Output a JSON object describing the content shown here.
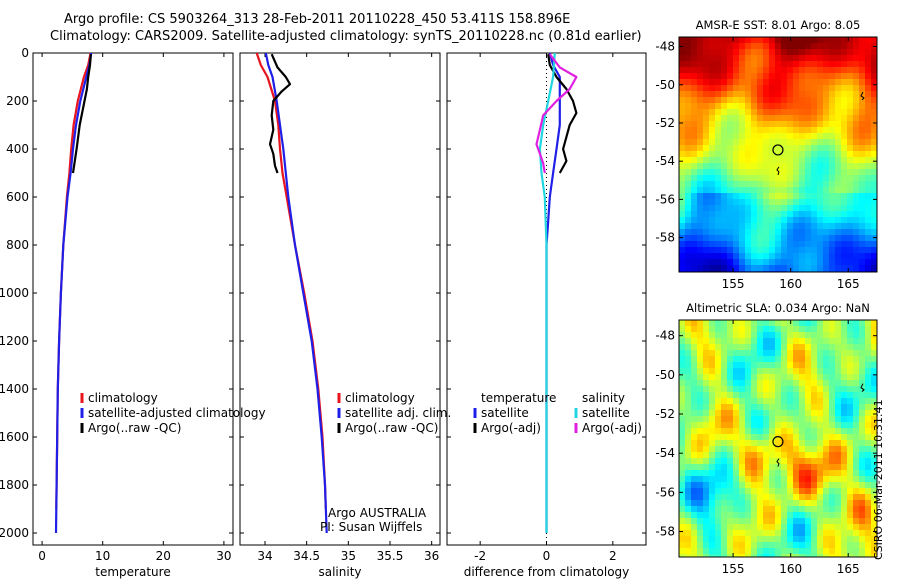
{
  "header": {
    "line1": "Argo profile: CS 5903264_313 28-Feb-2011 20110228_450 53.411S 158.896E",
    "line2": "Climatology: CARS2009. Satellite-adjusted climatology: synTS_20110228.nc (0.81d earlier)"
  },
  "colors": {
    "climatology": "#e8141e",
    "satellite": "#1f1fe8",
    "argo": "#000000",
    "salinity_satellite": "#22d6e0",
    "salinity_argo": "#e020e0"
  },
  "chart_data": [
    {
      "type": "line",
      "panel": "temperature",
      "xlabel": "temperature",
      "xlim": [
        -1.5,
        31.5
      ],
      "ylim": [
        0,
        2050
      ],
      "y_reversed": true,
      "xticks": [
        0,
        10,
        20,
        30
      ],
      "yticks": [
        0,
        200,
        400,
        600,
        800,
        1000,
        1200,
        1400,
        1600,
        1800,
        2000
      ],
      "legend": [
        "climatology",
        "satellite-adjusted climatology",
        "Argo(..raw -QC)"
      ],
      "series": [
        {
          "name": "climatology",
          "color_key": "climatology",
          "depth": [
            0,
            50,
            100,
            200,
            300,
            400,
            500,
            600,
            800,
            1000,
            1200,
            1400,
            1600,
            1800,
            1900
          ],
          "values": [
            8.0,
            7.6,
            6.9,
            5.9,
            5.2,
            4.8,
            4.5,
            4.1,
            3.5,
            3.1,
            2.8,
            2.6,
            2.5,
            2.4,
            2.35
          ]
        },
        {
          "name": "satellite-adjusted climatology",
          "color_key": "satellite",
          "depth": [
            0,
            50,
            100,
            200,
            300,
            400,
            500,
            600,
            800,
            1000,
            1200,
            1400,
            1600,
            1800,
            2000
          ],
          "values": [
            8.1,
            7.8,
            7.3,
            6.3,
            5.6,
            5.1,
            4.7,
            4.2,
            3.5,
            3.1,
            2.8,
            2.6,
            2.5,
            2.4,
            2.3
          ]
        },
        {
          "name": "Argo(..raw -QC)",
          "color_key": "argo",
          "depth": [
            5,
            50,
            100,
            150,
            200,
            300,
            400,
            500
          ],
          "values": [
            8.05,
            7.9,
            7.6,
            7.4,
            7.0,
            6.2,
            5.7,
            5.1
          ]
        }
      ]
    },
    {
      "type": "line",
      "panel": "salinity",
      "xlabel": "salinity",
      "xlim": [
        33.7,
        36.1
      ],
      "ylim": [
        0,
        2050
      ],
      "y_reversed": true,
      "xticks": [
        34,
        34.5,
        35,
        35.5,
        36
      ],
      "yticks": [
        0,
        200,
        400,
        600,
        800,
        1000,
        1200,
        1400,
        1600,
        1800,
        2000
      ],
      "legend": [
        "climatology",
        "satellite adj. clim.",
        "Argo(..raw -QC)"
      ],
      "annotation_line1": "Argo AUSTRALIA",
      "annotation_line2": "PI: Susan Wijffels",
      "series": [
        {
          "name": "climatology",
          "color_key": "climatology",
          "depth": [
            0,
            50,
            100,
            200,
            300,
            400,
            500,
            600,
            800,
            1000,
            1200,
            1400,
            1600,
            1800,
            1900
          ],
          "values": [
            33.9,
            33.95,
            34.03,
            34.12,
            34.16,
            34.18,
            34.21,
            34.26,
            34.36,
            34.47,
            34.57,
            34.64,
            34.69,
            34.72,
            34.73
          ]
        },
        {
          "name": "satellite adj. clim.",
          "color_key": "satellite",
          "depth": [
            0,
            50,
            100,
            200,
            300,
            400,
            500,
            600,
            800,
            1000,
            1200,
            1400,
            1600,
            1800,
            2000
          ],
          "values": [
            34.01,
            34.04,
            34.09,
            34.14,
            34.18,
            34.22,
            34.25,
            34.28,
            34.36,
            34.46,
            34.56,
            34.63,
            34.68,
            34.72,
            34.74
          ]
        },
        {
          "name": "Argo(..raw -QC)",
          "color_key": "argo",
          "depth": [
            5,
            60,
            100,
            130,
            160,
            200,
            260,
            320,
            380,
            420,
            470,
            500
          ],
          "values": [
            34.08,
            34.15,
            34.25,
            34.3,
            34.2,
            34.1,
            34.08,
            34.1,
            34.06,
            34.1,
            34.12,
            34.15
          ]
        }
      ]
    },
    {
      "type": "line",
      "panel": "difference",
      "xlabel": "difference from climatology",
      "xlim": [
        -3,
        3
      ],
      "ylim": [
        0,
        2050
      ],
      "y_reversed": true,
      "xticks": [
        -2,
        0,
        2
      ],
      "yticks": [
        0,
        200,
        400,
        600,
        800,
        1000,
        1200,
        1400,
        1600,
        1800,
        2000
      ],
      "legend_temperature": [
        "temperature",
        "satellite",
        "Argo(-adj)"
      ],
      "legend_salinity": [
        "salinity",
        "satellite",
        "Argo(-adj)"
      ],
      "series": [
        {
          "name": "satellite",
          "group": "temperature",
          "color_key": "satellite",
          "depth": [
            0,
            50,
            100,
            200,
            300,
            400,
            500,
            600,
            700,
            800,
            1000,
            1200,
            1400,
            1600,
            1800,
            2000
          ],
          "values": [
            0.1,
            0.2,
            0.4,
            0.4,
            0.4,
            0.3,
            0.2,
            0.1,
            0.05,
            0.0,
            0.0,
            0.0,
            0.0,
            0.0,
            0.0,
            0.0
          ]
        },
        {
          "name": "Argo(-adj)",
          "group": "temperature",
          "color_key": "argo",
          "depth": [
            5,
            50,
            100,
            150,
            200,
            250,
            300,
            350,
            400,
            450,
            500
          ],
          "values": [
            0.05,
            0.1,
            0.3,
            0.6,
            0.8,
            0.9,
            0.7,
            0.6,
            0.5,
            0.6,
            0.4
          ]
        },
        {
          "name": "satellite",
          "group": "salinity",
          "color_key": "salinity_satellite",
          "depth": [
            0,
            100,
            200,
            300,
            400,
            500,
            600,
            800,
            1000,
            1200,
            1400,
            1600,
            1800,
            2000
          ],
          "values": [
            0.25,
            0.2,
            0.05,
            -0.1,
            -0.2,
            -0.15,
            -0.05,
            0.0,
            0.0,
            0.0,
            0.0,
            0.0,
            0.0,
            0.0
          ]
        },
        {
          "name": "Argo(-adj)",
          "group": "salinity",
          "color_key": "salinity_argo",
          "depth": [
            5,
            60,
            100,
            150,
            200,
            260,
            320,
            380,
            420,
            460,
            500
          ],
          "values": [
            0.1,
            0.4,
            0.9,
            0.7,
            0.3,
            -0.1,
            -0.2,
            -0.3,
            -0.2,
            -0.1,
            -0.05
          ]
        }
      ]
    },
    {
      "type": "heatmap",
      "panel": "sst_map",
      "title": "AMSR-E SST: 8.01 Argo: 8.05",
      "xlim": [
        150.3,
        167.5
      ],
      "ylim": [
        -59.8,
        -47.5
      ],
      "xticks": [
        155,
        160,
        165
      ],
      "yticks": [
        -48,
        -50,
        -52,
        -54,
        -56,
        -58
      ],
      "argo_position": [
        158.896,
        -53.411
      ]
    },
    {
      "type": "heatmap",
      "panel": "sla_map",
      "title": "Altimetric SLA: 0.034 Argo: NaN",
      "xlim": [
        150.3,
        167.5
      ],
      "ylim": [
        -59.3,
        -47.2
      ],
      "xticks": [
        155,
        160,
        165
      ],
      "yticks": [
        -48,
        -50,
        -52,
        -54,
        -56,
        -58
      ],
      "argo_position": [
        158.896,
        -53.411
      ]
    }
  ],
  "footer": {
    "stamp": "CSIRO 06-Mar-2011 10:31:41"
  }
}
